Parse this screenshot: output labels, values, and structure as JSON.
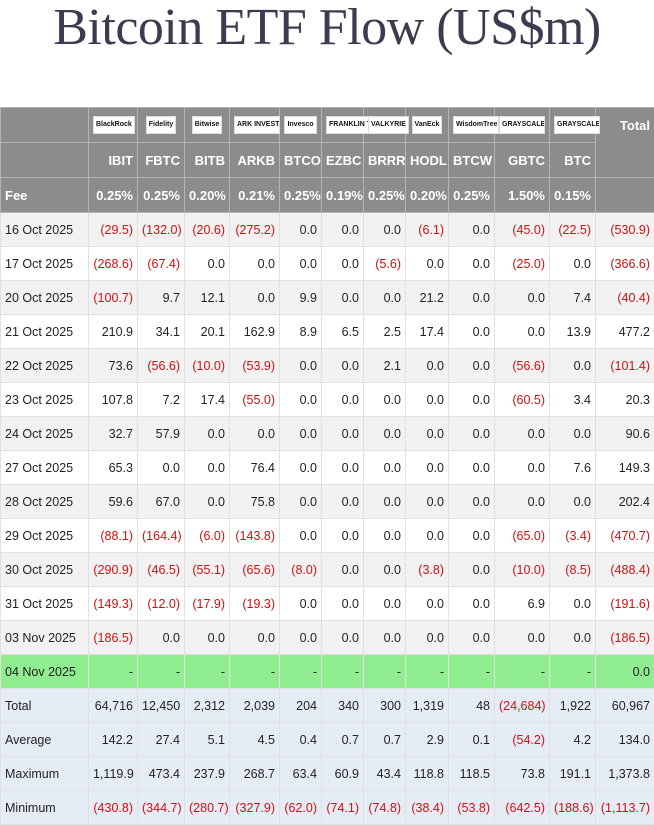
{
  "title": "Bitcoin ETF Flow (US$m)",
  "header": {
    "total_label": "Total",
    "fee_label": "Fee",
    "tickers": [
      "IBIT",
      "FBTC",
      "BITB",
      "ARKB",
      "BTCO",
      "EZBC",
      "BRRR",
      "HODL",
      "BTCW",
      "GBTC",
      "BTC"
    ],
    "fees": [
      "0.25%",
      "0.25%",
      "0.20%",
      "0.21%",
      "0.25%",
      "0.19%",
      "0.25%",
      "0.20%",
      "0.25%",
      "1.50%",
      "0.15%"
    ],
    "logos": [
      "BlackRock",
      "Fidelity",
      "Bitwise",
      "ARK INVEST",
      "Invesco",
      "FRANKLIN TEMPLETON",
      "VALKYRIE",
      "VanEck",
      "WisdomTree",
      "GRAYSCALE",
      "GRAYSCALE"
    ]
  },
  "rows": [
    {
      "date": "16 Oct 2025",
      "values": [
        "(29.5)",
        "(132.0)",
        "(20.6)",
        "(275.2)",
        "0.0",
        "0.0",
        "0.0",
        "(6.1)",
        "0.0",
        "(45.0)",
        "(22.5)",
        "(530.9)"
      ]
    },
    {
      "date": "17 Oct 2025",
      "values": [
        "(268.6)",
        "(67.4)",
        "0.0",
        "0.0",
        "0.0",
        "0.0",
        "(5.6)",
        "0.0",
        "0.0",
        "(25.0)",
        "0.0",
        "(366.6)"
      ]
    },
    {
      "date": "20 Oct 2025",
      "values": [
        "(100.7)",
        "9.7",
        "12.1",
        "0.0",
        "9.9",
        "0.0",
        "0.0",
        "21.2",
        "0.0",
        "0.0",
        "7.4",
        "(40.4)"
      ]
    },
    {
      "date": "21 Oct 2025",
      "values": [
        "210.9",
        "34.1",
        "20.1",
        "162.9",
        "8.9",
        "6.5",
        "2.5",
        "17.4",
        "0.0",
        "0.0",
        "13.9",
        "477.2"
      ]
    },
    {
      "date": "22 Oct 2025",
      "values": [
        "73.6",
        "(56.6)",
        "(10.0)",
        "(53.9)",
        "0.0",
        "0.0",
        "2.1",
        "0.0",
        "0.0",
        "(56.6)",
        "0.0",
        "(101.4)"
      ]
    },
    {
      "date": "23 Oct 2025",
      "values": [
        "107.8",
        "7.2",
        "17.4",
        "(55.0)",
        "0.0",
        "0.0",
        "0.0",
        "0.0",
        "0.0",
        "(60.5)",
        "3.4",
        "20.3"
      ]
    },
    {
      "date": "24 Oct 2025",
      "values": [
        "32.7",
        "57.9",
        "0.0",
        "0.0",
        "0.0",
        "0.0",
        "0.0",
        "0.0",
        "0.0",
        "0.0",
        "0.0",
        "90.6"
      ]
    },
    {
      "date": "27 Oct 2025",
      "values": [
        "65.3",
        "0.0",
        "0.0",
        "76.4",
        "0.0",
        "0.0",
        "0.0",
        "0.0",
        "0.0",
        "0.0",
        "7.6",
        "149.3"
      ]
    },
    {
      "date": "28 Oct 2025",
      "values": [
        "59.6",
        "67.0",
        "0.0",
        "75.8",
        "0.0",
        "0.0",
        "0.0",
        "0.0",
        "0.0",
        "0.0",
        "0.0",
        "202.4"
      ]
    },
    {
      "date": "29 Oct 2025",
      "values": [
        "(88.1)",
        "(164.4)",
        "(6.0)",
        "(143.8)",
        "0.0",
        "0.0",
        "0.0",
        "0.0",
        "0.0",
        "(65.0)",
        "(3.4)",
        "(470.7)"
      ]
    },
    {
      "date": "30 Oct 2025",
      "values": [
        "(290.9)",
        "(46.5)",
        "(55.1)",
        "(65.6)",
        "(8.0)",
        "0.0",
        "0.0",
        "(3.8)",
        "0.0",
        "(10.0)",
        "(8.5)",
        "(488.4)"
      ]
    },
    {
      "date": "31 Oct 2025",
      "values": [
        "(149.3)",
        "(12.0)",
        "(17.9)",
        "(19.3)",
        "0.0",
        "0.0",
        "0.0",
        "0.0",
        "0.0",
        "6.9",
        "0.0",
        "(191.6)"
      ]
    },
    {
      "date": "03 Nov 2025",
      "values": [
        "(186.5)",
        "0.0",
        "0.0",
        "0.0",
        "0.0",
        "0.0",
        "0.0",
        "0.0",
        "0.0",
        "0.0",
        "0.0",
        "(186.5)"
      ]
    },
    {
      "date": "04 Nov 2025",
      "values": [
        "-",
        "-",
        "-",
        "-",
        "-",
        "-",
        "-",
        "-",
        "-",
        "-",
        "-",
        "0.0"
      ],
      "highlight": true
    }
  ],
  "stats": [
    {
      "label": "Total",
      "values": [
        "64,716",
        "12,450",
        "2,312",
        "2,039",
        "204",
        "340",
        "300",
        "1,319",
        "48",
        "(24,684)",
        "1,922",
        "60,967"
      ]
    },
    {
      "label": "Average",
      "values": [
        "142.2",
        "27.4",
        "5.1",
        "4.5",
        "0.4",
        "0.7",
        "0.7",
        "2.9",
        "0.1",
        "(54.2)",
        "4.2",
        "134.0"
      ]
    },
    {
      "label": "Maximum",
      "values": [
        "1,119.9",
        "473.4",
        "237.9",
        "268.7",
        "63.4",
        "60.9",
        "43.4",
        "118.8",
        "118.5",
        "73.8",
        "191.1",
        "1,373.8"
      ]
    },
    {
      "label": "Minimum",
      "values": [
        "(430.8)",
        "(344.7)",
        "(280.7)",
        "(327.9)",
        "(62.0)",
        "(74.1)",
        "(74.8)",
        "(38.4)",
        "(53.8)",
        "(642.5)",
        "(188.6)",
        "(1,113.7)"
      ]
    }
  ]
}
